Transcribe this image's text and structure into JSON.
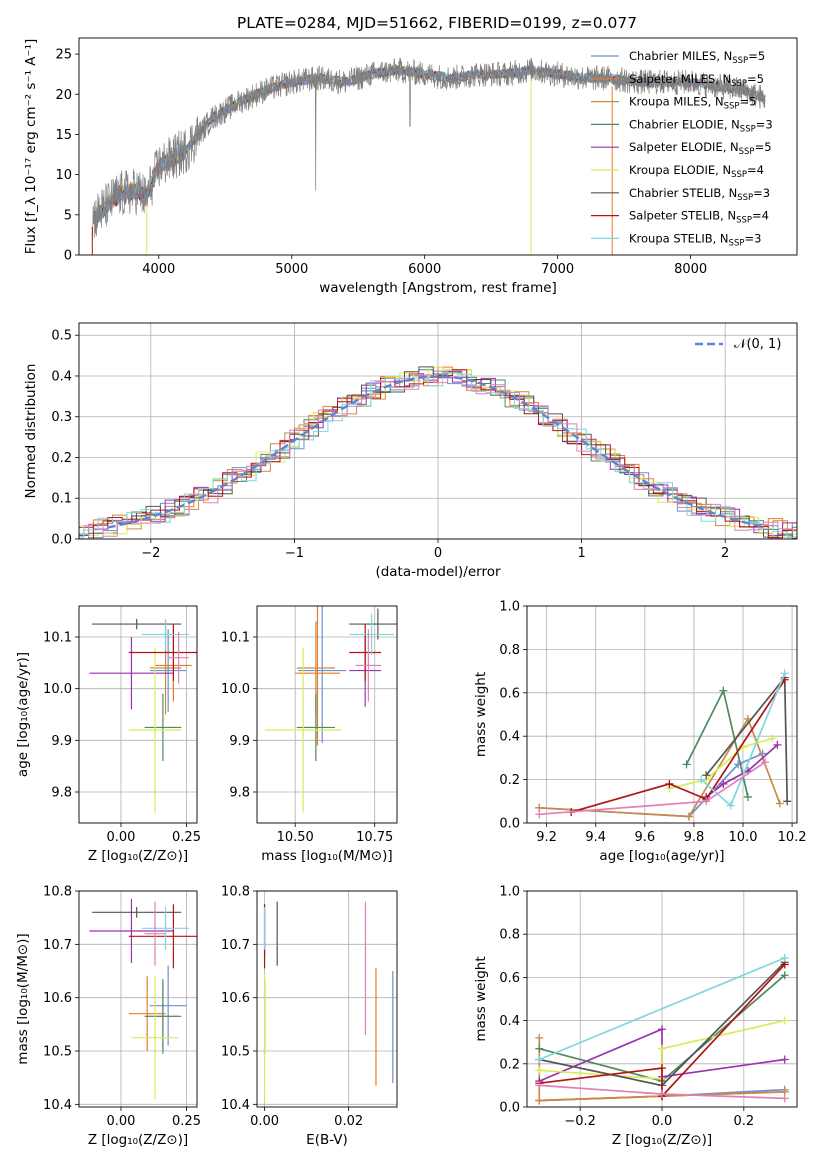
{
  "title": "PLATE=0284, MJD=51662, FIBERID=0199, z=0.077",
  "colors": {
    "Chabrier MILES": "#6f8fd0",
    "Salpeter MILES": "#e87a2a",
    "Kroupa MILES": "#c98a46",
    "Chabrier ELODIE": "#4f8a5f",
    "Salpeter ELODIE": "#9a32b0",
    "Kroupa ELODIE": "#d8ec58",
    "Chabrier STELIB": "#555555",
    "Salpeter STELIB": "#b01414",
    "Kroupa STELIB": "#7fd5e0",
    "pink": "#e080b8",
    "gauss": "#5b86d6",
    "data": "#808080"
  },
  "chart_data": [
    {
      "id": "spectrum",
      "type": "line",
      "xlabel": "wavelength [Angstrom, rest frame]",
      "ylabel": "Flux [f_λ 10⁻¹⁷ erg cm⁻² s⁻¹ A⁻¹]",
      "xlim": [
        3400,
        8800
      ],
      "ylim": [
        0,
        27
      ],
      "xticks": [
        4000,
        5000,
        6000,
        7000,
        8000
      ],
      "yticks": [
        0,
        5,
        10,
        15,
        20,
        25
      ],
      "continuum_x": [
        3500,
        3700,
        3850,
        3900,
        4000,
        4200,
        4400,
        4600,
        4800,
        5000,
        5200,
        5400,
        5600,
        5800,
        6000,
        6200,
        6400,
        6600,
        6800,
        7000,
        7200,
        7400,
        7600,
        7800,
        8000,
        8200,
        8400,
        8550
      ],
      "continuum_y": [
        4.5,
        7.5,
        8,
        7,
        11,
        13,
        17,
        19,
        20.5,
        21.5,
        22,
        21.5,
        22.5,
        23,
        22.5,
        22,
        22.5,
        22.5,
        23,
        22.5,
        22,
        22,
        21.5,
        21.5,
        21.5,
        21,
        20.5,
        19.5
      ],
      "legend": [
        {
          "label": "Chabrier MILES",
          "n": "5"
        },
        {
          "label": "Salpeter MILES",
          "n": "5"
        },
        {
          "label": "Kroupa MILES",
          "n": "5"
        },
        {
          "label": "Chabrier ELODIE",
          "n": "3"
        },
        {
          "label": "Salpeter ELODIE",
          "n": "5"
        },
        {
          "label": "Kroupa ELODIE",
          "n": "4"
        },
        {
          "label": "Chabrier STELIB",
          "n": "3"
        },
        {
          "label": "Salpeter STELIB",
          "n": "4"
        },
        {
          "label": "Kroupa STELIB",
          "n": "3"
        }
      ],
      "legend_nsub": "SSP",
      "legend_placement": "right"
    },
    {
      "id": "residuals",
      "type": "histogram",
      "xlabel": "(data-model)/error",
      "ylabel": "Normed distribution",
      "xlim": [
        -2.5,
        2.5
      ],
      "ylim": [
        0,
        0.53
      ],
      "xticks": [
        -2,
        -1,
        0,
        1,
        2
      ],
      "yticks": [
        0.0,
        0.1,
        0.2,
        0.3,
        0.4,
        0.5
      ],
      "gauss_label": "𝒩(0, 1)",
      "grid": true,
      "legend_placement": "top-right"
    },
    {
      "id": "age_vs_Z",
      "type": "errorbar",
      "xlabel": "Z [log₁₀(Z/Z⊙)]",
      "ylabel": "age  [log₁₀(age/yr)]",
      "xlim": [
        -0.16,
        0.29
      ],
      "ylim": [
        9.74,
        10.16
      ],
      "xticks": [
        0.0,
        0.25
      ],
      "yticks": [
        9.8,
        9.9,
        10.0,
        10.1
      ],
      "points": [
        {
          "model": "Chabrier MILES",
          "x": 0.18,
          "xerr": 0.07,
          "y": 10.035,
          "yerr": 0.08
        },
        {
          "model": "Salpeter MILES",
          "x": 0.2,
          "xerr": 0.07,
          "y": 10.045,
          "yerr": 0.07
        },
        {
          "model": "Kroupa MILES",
          "x": 0.17,
          "xerr": 0.06,
          "y": 10.04,
          "yerr": 0.09
        },
        {
          "model": "Chabrier ELODIE",
          "x": 0.16,
          "xerr": 0.07,
          "y": 9.925,
          "yerr": 0.065
        },
        {
          "model": "Salpeter ELODIE",
          "x": 0.04,
          "xerr": 0.16,
          "y": 10.03,
          "yerr": 0.07
        },
        {
          "model": "Kroupa ELODIE",
          "x": 0.13,
          "xerr": 0.1,
          "y": 9.92,
          "yerr": 0.16
        },
        {
          "model": "Chabrier STELIB",
          "x": 0.06,
          "xerr": 0.17,
          "y": 10.125,
          "yerr": 0.01
        },
        {
          "model": "Salpeter STELIB",
          "x": 0.2,
          "xerr": 0.17,
          "y": 10.07,
          "yerr": 0.055
        },
        {
          "model": "Kroupa STELIB",
          "x": 0.17,
          "xerr": 0.09,
          "y": 10.105,
          "yerr": 0.03
        },
        {
          "model": "pink",
          "x": 0.22,
          "xerr": 0.04,
          "y": 10.06,
          "yerr": 0.05
        }
      ]
    },
    {
      "id": "age_vs_mass",
      "type": "errorbar",
      "xlabel": "mass [log₁₀(M/M⊙)]",
      "ylabel": "",
      "xlim": [
        10.38,
        10.82
      ],
      "ylim": [
        9.74,
        10.16
      ],
      "xticks": [
        10.5,
        10.75
      ],
      "yticks": [
        9.8,
        9.9,
        10.0,
        10.1
      ],
      "points": [
        {
          "model": "Chabrier MILES",
          "x": 10.585,
          "xerr": 0.075,
          "y": 10.035,
          "yerr": 0.14
        },
        {
          "model": "Salpeter MILES",
          "x": 10.57,
          "xerr": 0.07,
          "y": 10.03,
          "yerr": 0.14
        },
        {
          "model": "Kroupa MILES",
          "x": 10.565,
          "xerr": 0.06,
          "y": 10.04,
          "yerr": 0.09
        },
        {
          "model": "Chabrier ELODIE",
          "x": 10.565,
          "xerr": 0.06,
          "y": 9.925,
          "yerr": 0.065
        },
        {
          "model": "Salpeter ELODIE",
          "x": 10.72,
          "xerr": 0.05,
          "y": 10.035,
          "yerr": 0.07
        },
        {
          "model": "Kroupa ELODIE",
          "x": 10.525,
          "xerr": 0.12,
          "y": 9.92,
          "yerr": 0.16
        },
        {
          "model": "Chabrier STELIB",
          "x": 10.76,
          "xerr": 0.09,
          "y": 10.125,
          "yerr": 0.03
        },
        {
          "model": "Salpeter STELIB",
          "x": 10.72,
          "xerr": 0.05,
          "y": 10.07,
          "yerr": 0.055
        },
        {
          "model": "Kroupa STELIB",
          "x": 10.74,
          "xerr": 0.07,
          "y": 10.105,
          "yerr": 0.04
        },
        {
          "model": "pink",
          "x": 10.73,
          "xerr": 0.04,
          "y": 10.045,
          "yerr": 0.07
        }
      ]
    },
    {
      "id": "weight_vs_age",
      "type": "line",
      "xlabel": "age  [log₁₀(age/yr)]",
      "ylabel": "mass weight",
      "xlim": [
        9.12,
        10.22
      ],
      "ylim": [
        0.0,
        1.0
      ],
      "xticks": [
        9.2,
        9.4,
        9.6,
        9.8,
        10.0,
        10.2
      ],
      "yticks": [
        0.0,
        0.2,
        0.4,
        0.6,
        0.8,
        1.0
      ],
      "grid": true,
      "series": [
        {
          "model": "Chabrier MILES",
          "x": [
            9.17,
            9.78,
            9.98,
            10.08
          ],
          "y": [
            0.07,
            0.03,
            0.27,
            0.32
          ]
        },
        {
          "model": "Kroupa MILES",
          "x": [
            9.17,
            9.78,
            10.02,
            10.15
          ],
          "y": [
            0.07,
            0.03,
            0.48,
            0.09
          ]
        },
        {
          "model": "Chabrier ELODIE",
          "x": [
            9.77,
            9.92,
            10.02
          ],
          "y": [
            0.27,
            0.61,
            0.12
          ]
        },
        {
          "model": "Salpeter ELODIE",
          "x": [
            9.85,
            9.92,
            10.02,
            10.14
          ],
          "y": [
            0.12,
            0.18,
            0.24,
            0.36
          ]
        },
        {
          "model": "Kroupa ELODIE",
          "x": [
            9.7,
            9.85,
            10.0,
            10.12
          ],
          "y": [
            0.16,
            0.2,
            0.35,
            0.39
          ]
        },
        {
          "model": "Chabrier STELIB",
          "x": [
            9.85,
            10.17,
            10.18
          ],
          "y": [
            0.22,
            0.67,
            0.1
          ]
        },
        {
          "model": "Salpeter STELIB",
          "x": [
            9.3,
            9.7,
            9.85,
            10.17
          ],
          "y": [
            0.05,
            0.18,
            0.11,
            0.66
          ]
        },
        {
          "model": "Kroupa STELIB",
          "x": [
            9.83,
            9.95,
            10.17
          ],
          "y": [
            0.2,
            0.08,
            0.69
          ]
        },
        {
          "model": "pink",
          "x": [
            9.17,
            9.85,
            10.09
          ],
          "y": [
            0.04,
            0.1,
            0.28
          ]
        }
      ]
    },
    {
      "id": "mass_vs_Z",
      "type": "errorbar",
      "xlabel": "Z [log₁₀(Z/Z⊙)]",
      "ylabel": "mass [log₁₀(M/M⊙)]",
      "xlim": [
        -0.16,
        0.29
      ],
      "ylim": [
        10.395,
        10.8
      ],
      "xticks": [
        0.0,
        0.25
      ],
      "yticks": [
        10.4,
        10.5,
        10.6,
        10.7,
        10.8
      ],
      "points": [
        {
          "model": "Chabrier MILES",
          "x": 0.18,
          "xerr": 0.07,
          "y": 10.585,
          "yerr": 0.075
        },
        {
          "model": "Salpeter MILES",
          "x": 0.1,
          "xerr": 0.07,
          "y": 10.57,
          "yerr": 0.07
        },
        {
          "model": "Kroupa MILES",
          "x": 0.16,
          "xerr": 0.06,
          "y": 10.565,
          "yerr": 0.06
        },
        {
          "model": "Chabrier ELODIE",
          "x": 0.16,
          "xerr": 0.07,
          "y": 10.565,
          "yerr": 0.07
        },
        {
          "model": "Salpeter ELODIE",
          "x": 0.04,
          "xerr": 0.16,
          "y": 10.725,
          "yerr": 0.06
        },
        {
          "model": "Kroupa ELODIE",
          "x": 0.13,
          "xerr": 0.09,
          "y": 10.525,
          "yerr": 0.115
        },
        {
          "model": "Chabrier STELIB",
          "x": 0.06,
          "xerr": 0.17,
          "y": 10.76,
          "yerr": 0.01
        },
        {
          "model": "Salpeter STELIB",
          "x": 0.2,
          "xerr": 0.17,
          "y": 10.715,
          "yerr": 0.06
        },
        {
          "model": "Kroupa STELIB",
          "x": 0.17,
          "xerr": 0.09,
          "y": 10.73,
          "yerr": 0.04
        },
        {
          "model": "pink",
          "x": 0.13,
          "xerr": 0.04,
          "y": 10.72,
          "yerr": 0.06
        }
      ]
    },
    {
      "id": "mass_vs_ebv",
      "type": "errorbar",
      "xlabel": "E(B-V)",
      "ylabel": "",
      "xlim": [
        -0.0018,
        0.0315
      ],
      "ylim": [
        10.395,
        10.8
      ],
      "xticks": [
        0.0,
        0.02
      ],
      "xticklabels": [
        "0.00",
        "0.02"
      ],
      "yticks": [
        10.4,
        10.5,
        10.6,
        10.7,
        10.8
      ],
      "points": [
        {
          "model": "Chabrier MILES",
          "x": 0.0305,
          "xerr": 0,
          "y": 10.545,
          "yerr": 0.105
        },
        {
          "model": "Salpeter MILES",
          "x": 0.0265,
          "xerr": 0,
          "y": 10.545,
          "yerr": 0.11
        },
        {
          "model": "Kroupa MILES",
          "x": 0.0,
          "xerr": 0,
          "y": 10.565,
          "yerr": 0.07
        },
        {
          "model": "Chabrier ELODIE",
          "x": 0.0,
          "xerr": 0,
          "y": 10.565,
          "yerr": 0.07
        },
        {
          "model": "Salpeter ELODIE",
          "x": 0.0,
          "xerr": 0,
          "y": 10.725,
          "yerr": 0.05
        },
        {
          "model": "Kroupa ELODIE",
          "x": 0.0,
          "xerr": 0,
          "y": 10.525,
          "yerr": 0.12
        },
        {
          "model": "Chabrier STELIB",
          "x": 0.003,
          "xerr": 0,
          "y": 10.72,
          "yerr": 0.06
        },
        {
          "model": "Salpeter STELIB",
          "x": 0.0,
          "xerr": 0,
          "y": 10.715,
          "yerr": 0.06
        },
        {
          "model": "Kroupa STELIB",
          "x": 0.0,
          "xerr": 0,
          "y": 10.73,
          "yerr": 0.04
        },
        {
          "model": "pink",
          "x": 0.024,
          "xerr": 0,
          "y": 10.655,
          "yerr": 0.125
        }
      ]
    },
    {
      "id": "weight_vs_Z",
      "type": "line",
      "xlabel": "Z [log₁₀(Z/Z⊙)]",
      "ylabel": "mass weight",
      "xlim": [
        -0.33,
        0.33
      ],
      "ylim": [
        0.0,
        1.0
      ],
      "xticks": [
        -0.2,
        0.0,
        0.2
      ],
      "yticks": [
        0.0,
        0.2,
        0.4,
        0.6,
        0.8,
        1.0
      ],
      "grid": true,
      "series": [
        {
          "model": "Chabrier MILES",
          "x": [
            -0.3,
            0.0,
            0.3
          ],
          "y": [
            0.03,
            0.05,
            0.08
          ]
        },
        {
          "model": "Salpeter MILES",
          "x": [
            -0.3,
            0.0,
            0.3
          ],
          "y": [
            0.03,
            0.05,
            0.07
          ]
        },
        {
          "model": "Kroupa MILES",
          "x": [
            -0.3,
            -0.3,
            0.0,
            0.3
          ],
          "y": [
            0.32,
            0.03,
            0.05,
            0.07
          ]
        },
        {
          "model": "Chabrier ELODIE",
          "x": [
            -0.3,
            0.0,
            0.3
          ],
          "y": [
            0.27,
            0.12,
            0.61
          ]
        },
        {
          "model": "Salpeter ELODIE",
          "x": [
            -0.3,
            0.0,
            0.0,
            0.3
          ],
          "y": [
            0.12,
            0.36,
            0.14,
            0.22
          ]
        },
        {
          "model": "Kroupa ELODIE",
          "x": [
            -0.3,
            0.0,
            0.0,
            0.3
          ],
          "y": [
            0.17,
            0.13,
            0.27,
            0.4
          ]
        },
        {
          "model": "Chabrier STELIB",
          "x": [
            -0.3,
            0.0,
            0.3
          ],
          "y": [
            0.22,
            0.1,
            0.67
          ]
        },
        {
          "model": "Salpeter STELIB",
          "x": [
            -0.3,
            0.0,
            0.0,
            0.3
          ],
          "y": [
            0.11,
            0.18,
            0.05,
            0.66
          ]
        },
        {
          "model": "Kroupa STELIB",
          "x": [
            -0.3,
            0.3
          ],
          "y": [
            0.22,
            0.69
          ]
        },
        {
          "model": "pink",
          "x": [
            -0.3,
            0.0,
            0.3
          ],
          "y": [
            0.1,
            0.06,
            0.04
          ]
        }
      ]
    }
  ]
}
